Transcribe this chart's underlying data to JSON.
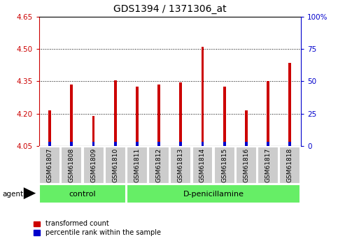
{
  "title": "GDS1394 / 1371306_at",
  "samples": [
    "GSM61807",
    "GSM61808",
    "GSM61809",
    "GSM61810",
    "GSM61811",
    "GSM61812",
    "GSM61813",
    "GSM61814",
    "GSM61815",
    "GSM61816",
    "GSM61817",
    "GSM61818"
  ],
  "transformed_counts": [
    4.215,
    4.335,
    4.19,
    4.355,
    4.325,
    4.335,
    4.345,
    4.51,
    4.325,
    4.215,
    4.35,
    4.435
  ],
  "percentile_ranks_scaled": [
    0.018,
    0.018,
    0.018,
    0.018,
    0.018,
    0.018,
    0.018,
    0.018,
    0.018,
    0.018,
    0.018,
    0.018
  ],
  "base_value": 4.05,
  "ylim": [
    4.05,
    4.65
  ],
  "y2lim": [
    0,
    100
  ],
  "yticks": [
    4.05,
    4.2,
    4.35,
    4.5,
    4.65
  ],
  "y2ticks": [
    0,
    25,
    50,
    75,
    100
  ],
  "grid_values": [
    4.2,
    4.35,
    4.5
  ],
  "n_control": 4,
  "n_treatment": 8,
  "control_label": "control",
  "treatment_label": "D-penicillamine",
  "agent_label": "agent",
  "red_color": "#cc0000",
  "blue_color": "#0000cc",
  "green_color": "#66ee66",
  "gray_color": "#cccccc",
  "bar_width": 0.12,
  "legend_red": "transformed count",
  "legend_blue": "percentile rank within the sample",
  "left_axis_color": "#cc0000",
  "right_axis_color": "#0000cc",
  "title_fontsize": 10,
  "tick_fontsize": 7.5,
  "label_fontsize": 6.5,
  "group_fontsize": 8
}
